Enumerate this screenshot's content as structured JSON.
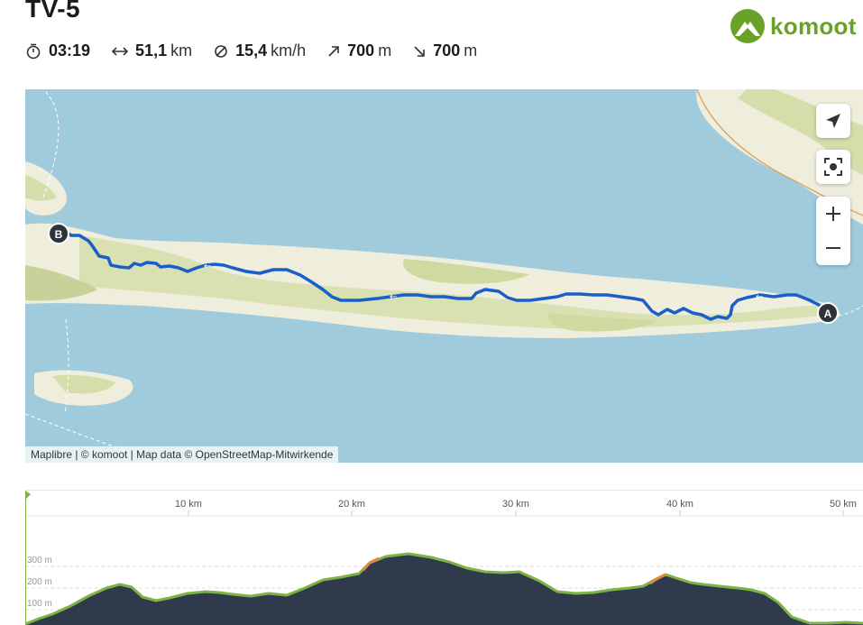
{
  "tour": {
    "title": "TV-5"
  },
  "brand": {
    "name": "komoot",
    "color": "#6aa127"
  },
  "stats": {
    "duration": {
      "icon": "stopwatch-icon",
      "value": "03:19"
    },
    "distance": {
      "icon": "distance-arrows-icon",
      "value": "51,1",
      "unit": "km"
    },
    "speed": {
      "icon": "average-speed-icon",
      "value": "15,4",
      "unit": "km/h"
    },
    "uphill": {
      "icon": "uphill-arrow-icon",
      "value": "700",
      "unit": "m"
    },
    "downhill": {
      "icon": "downhill-arrow-icon",
      "value": "700",
      "unit": "m"
    }
  },
  "map": {
    "start_marker": "A",
    "end_marker": "B",
    "attribution": "Maplibre | © komoot | Map data © OpenStreetMap-Mitwirkende",
    "controls": [
      "locate-icon",
      "recenter-icon",
      "zoom-in-icon",
      "zoom-out-icon"
    ],
    "colors": {
      "water": "#9fcbdd",
      "land": "#efeedd",
      "forest": "#d5deaa",
      "route": "#1a5ec9"
    }
  },
  "elevation": {
    "distance_ticks": [
      "10 km",
      "20 km",
      "30 km",
      "40 km",
      "50 km"
    ],
    "elevation_ticks": [
      "300 m",
      "200 m",
      "100 m"
    ],
    "colors": {
      "fill": "#2f3a4c",
      "line": "#7cb342"
    }
  }
}
